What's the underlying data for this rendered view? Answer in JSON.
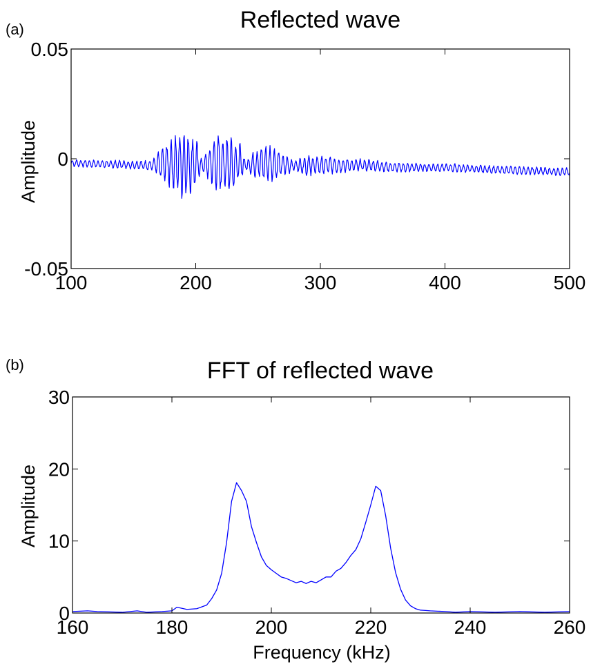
{
  "chart_data": [
    {
      "panel_label": "(a)",
      "type": "line",
      "title": "Reflected wave",
      "xlabel": "",
      "ylabel": "Amplitude",
      "xlim": [
        100,
        500
      ],
      "ylim": [
        -0.05,
        0.05
      ],
      "xticks": [
        "100",
        "200",
        "300",
        "400",
        "500"
      ],
      "yticks": [
        "-0.05",
        "0",
        "0.05"
      ],
      "grid": false,
      "color": "#0000ff",
      "series": [
        {
          "description": "oscillating burst signal; envelope peak amplitudes (data units)",
          "x": [
            100,
            165,
            180,
            190,
            200,
            205,
            215,
            225,
            235,
            240,
            250,
            260,
            270,
            280,
            290,
            300,
            310,
            320,
            340,
            360,
            380,
            400,
            440,
            500
          ],
          "y_center": [
            -0.002,
            -0.003,
            -0.002,
            -0.002,
            -0.002,
            -0.003,
            -0.002,
            -0.002,
            -0.002,
            -0.003,
            -0.002,
            -0.002,
            -0.003,
            -0.003,
            -0.003,
            -0.003,
            -0.003,
            -0.003,
            -0.003,
            -0.004,
            -0.004,
            -0.004,
            -0.005,
            -0.006
          ],
          "envelope": [
            0.0015,
            0.002,
            0.012,
            0.015,
            0.011,
            0.002,
            0.011,
            0.014,
            0.009,
            0.002,
            0.007,
            0.008,
            0.005,
            0.002,
            0.005,
            0.004,
            0.0035,
            0.003,
            0.0025,
            0.002,
            0.0018,
            0.0018,
            0.0017,
            0.0017
          ]
        }
      ]
    },
    {
      "panel_label": "(b)",
      "type": "line",
      "title": "FFT of reflected wave",
      "xlabel": "Frequency (kHz)",
      "ylabel": "Amplitude",
      "xlim": [
        160,
        260
      ],
      "ylim": [
        0,
        30
      ],
      "xticks": [
        "160",
        "180",
        "200",
        "220",
        "240",
        "260"
      ],
      "yticks": [
        "0",
        "10",
        "20",
        "30"
      ],
      "grid": false,
      "color": "#0000ff",
      "series": [
        {
          "x": [
            160,
            163,
            165,
            170,
            173,
            175,
            178,
            180,
            181,
            183,
            185,
            187,
            188,
            189,
            190,
            191,
            192,
            193,
            194,
            195,
            196,
            197,
            198,
            199,
            200,
            201,
            202,
            203,
            204,
            205,
            206,
            207,
            208,
            209,
            210,
            211,
            212,
            213,
            214,
            215,
            216,
            217,
            218,
            219,
            220,
            221,
            222,
            223,
            224,
            225,
            226,
            227,
            228,
            229,
            230,
            232,
            235,
            237,
            240,
            245,
            250,
            255,
            260
          ],
          "y": [
            0.2,
            0.3,
            0.2,
            0.1,
            0.3,
            0.1,
            0.2,
            0.3,
            0.8,
            0.5,
            0.6,
            1.1,
            2.0,
            3.2,
            5.5,
            9.8,
            15.5,
            18.1,
            17.0,
            15.5,
            12.0,
            9.8,
            7.8,
            6.6,
            6.0,
            5.5,
            5.0,
            4.8,
            4.5,
            4.2,
            4.4,
            4.1,
            4.4,
            4.2,
            4.6,
            5.0,
            5.0,
            5.8,
            6.2,
            7.0,
            8.0,
            8.8,
            10.3,
            12.6,
            15.0,
            17.6,
            17.0,
            13.5,
            9.0,
            5.6,
            3.3,
            1.8,
            1.0,
            0.6,
            0.4,
            0.3,
            0.2,
            0.1,
            0.2,
            0.1,
            0.2,
            0.1,
            0.2
          ]
        }
      ]
    }
  ]
}
